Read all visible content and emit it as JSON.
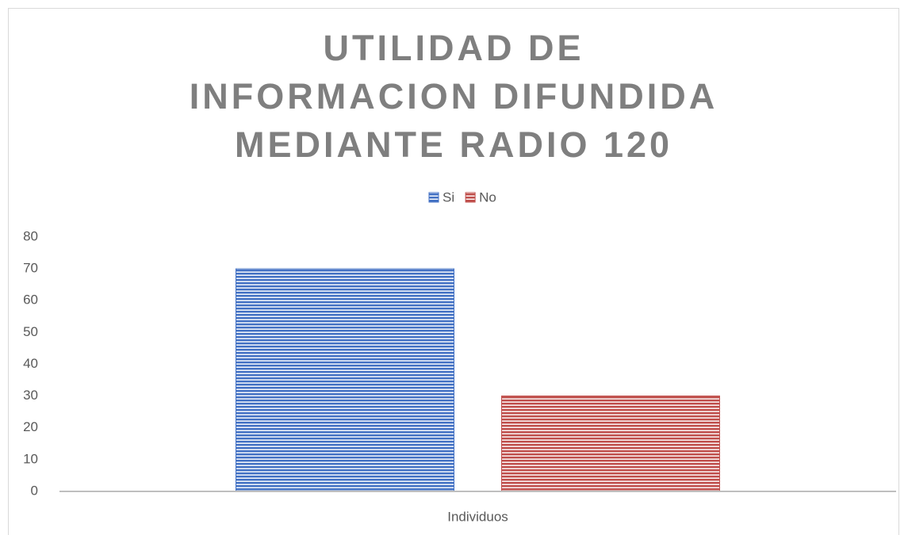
{
  "chart_data": {
    "type": "bar",
    "title": "UTILIDAD DE INFORMACION DIFUNDIDA MEDIANTE RADIO 120",
    "categories": [
      "Individuos"
    ],
    "series": [
      {
        "name": "Si",
        "color": "#4472c4",
        "values": [
          70
        ]
      },
      {
        "name": "No",
        "color": "#c0504d",
        "values": [
          30
        ]
      }
    ],
    "ylim": [
      0,
      80
    ],
    "yticks": [
      0,
      10,
      20,
      30,
      40,
      50,
      60,
      70,
      80
    ],
    "grid": false,
    "legend": "top"
  }
}
